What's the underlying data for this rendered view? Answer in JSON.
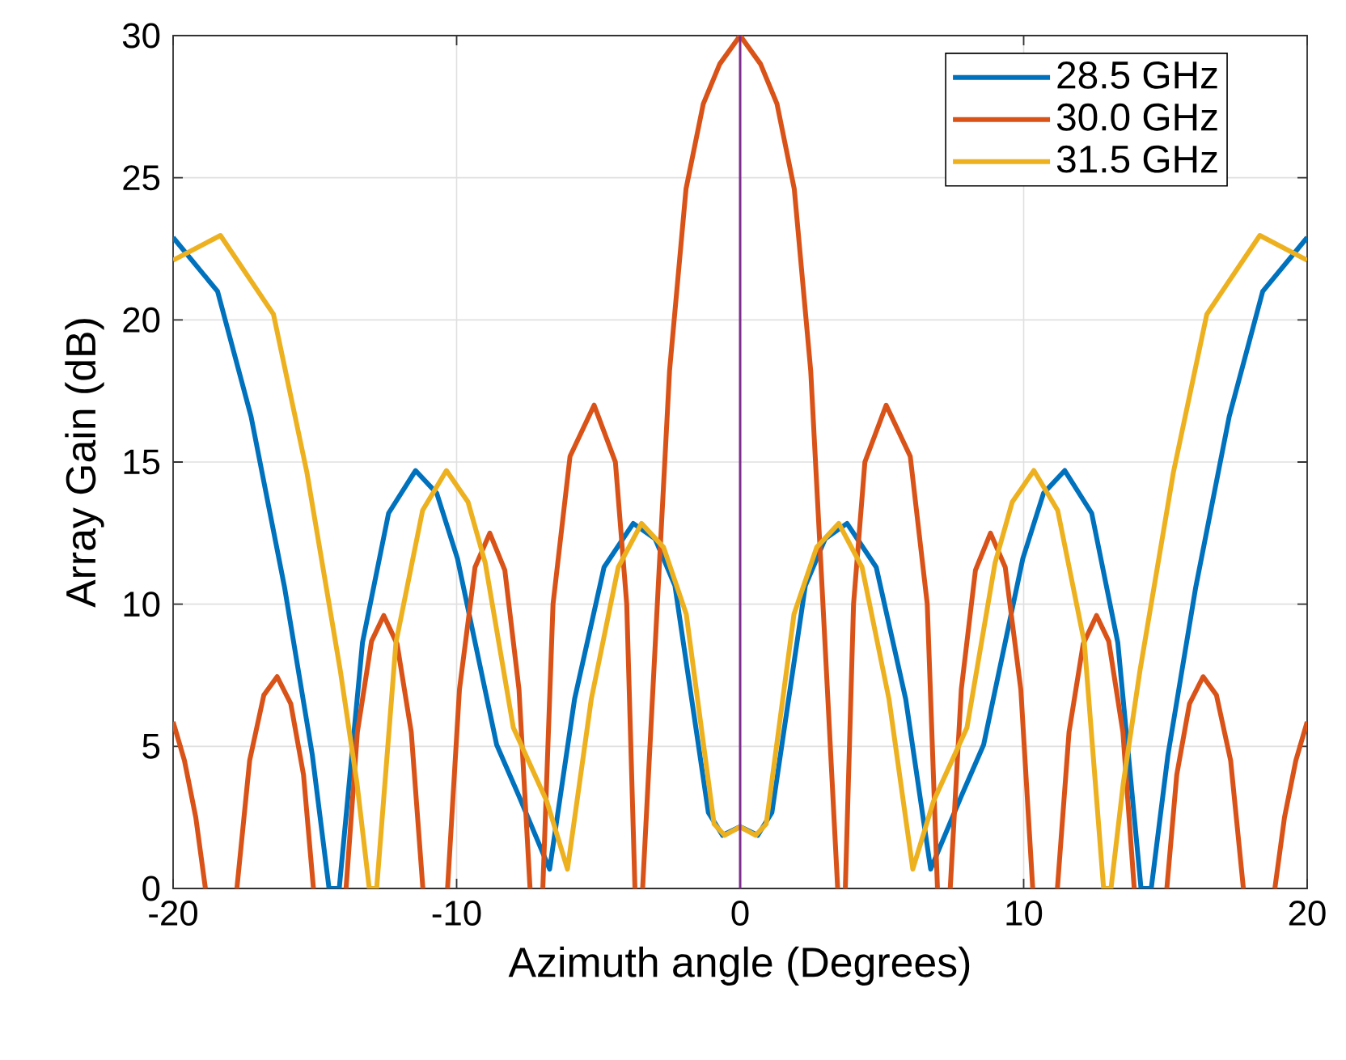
{
  "chart_data": {
    "type": "line",
    "xlabel": "Azimuth angle (Degrees)",
    "ylabel": "Array Gain (dB)",
    "xlim": [
      -20,
      20
    ],
    "ylim": [
      0,
      30
    ],
    "xticks": [
      -20,
      -10,
      0,
      10,
      20
    ],
    "yticks": [
      0,
      5,
      10,
      15,
      20,
      25,
      30
    ],
    "grid": true,
    "legend": "top right",
    "marker": "none",
    "line_style": "solid",
    "ref_lines": [
      {
        "axis": "x",
        "value": 0,
        "color": "#7e2f8e"
      }
    ],
    "series": [
      {
        "name": "28.5 GHz",
        "color": "#0072bd",
        "x": [
          -20,
          -18.43,
          -17.25,
          -16.07,
          -15.09,
          -14.5,
          -14.14,
          -13.32,
          -12.4,
          -11.45,
          -10.7,
          -9.97,
          -8.59,
          -7.81,
          -6.72,
          -5.84,
          -4.8,
          -3.77,
          -3.0,
          -2.3,
          -1.12,
          -0.62,
          0,
          0.62,
          1.12,
          2.3,
          3.0,
          3.77,
          4.8,
          5.84,
          6.72,
          7.81,
          8.59,
          9.97,
          10.7,
          11.45,
          12.4,
          13.32,
          14.14,
          14.5,
          15.09,
          16.07,
          17.25,
          18.43,
          20
        ],
        "values": [
          22.9,
          21.0,
          16.6,
          10.6,
          4.7,
          0,
          0,
          8.65,
          13.2,
          14.7,
          13.9,
          11.6,
          5.06,
          3.27,
          0.68,
          6.66,
          11.3,
          12.84,
          12.3,
          10.65,
          2.67,
          1.87,
          2.17,
          1.87,
          2.67,
          10.65,
          12.3,
          12.84,
          11.3,
          6.66,
          0.68,
          3.27,
          5.06,
          11.6,
          13.9,
          14.7,
          13.2,
          8.65,
          0,
          0,
          4.7,
          10.6,
          16.6,
          21.0,
          22.9
        ]
      },
      {
        "name": "30.0 GHz",
        "color": "#d95319",
        "x": [
          -20,
          -19.6,
          -19.2,
          -18.86,
          -18.3,
          -17.75,
          -17.3,
          -16.8,
          -16.33,
          -15.85,
          -15.4,
          -15.05,
          -14.5,
          -13.9,
          -13.5,
          -13.0,
          -12.57,
          -12.1,
          -11.6,
          -11.19,
          -10.75,
          -10.32,
          -9.9,
          -9.35,
          -8.83,
          -8.3,
          -7.8,
          -7.41,
          -7.18,
          -6.96,
          -6.6,
          -6.0,
          -5.15,
          -4.4,
          -4.0,
          -3.71,
          -3.57,
          -3.44,
          -2.89,
          -2.49,
          -1.91,
          -1.3,
          -0.72,
          0,
          0.72,
          1.3,
          1.91,
          2.49,
          2.89,
          3.44,
          3.57,
          3.71,
          4.0,
          4.4,
          5.15,
          6.0,
          6.6,
          6.96,
          7.18,
          7.41,
          7.8,
          8.3,
          8.83,
          9.35,
          9.9,
          10.32,
          10.75,
          11.19,
          11.6,
          12.1,
          12.57,
          13.0,
          13.5,
          13.9,
          14.5,
          15.05,
          15.4,
          15.85,
          16.33,
          16.8,
          17.3,
          17.75,
          18.3,
          18.86,
          19.2,
          19.6,
          20
        ],
        "values": [
          5.86,
          4.5,
          2.5,
          0,
          null,
          0,
          4.5,
          6.8,
          7.45,
          6.5,
          4,
          0,
          null,
          0,
          5.5,
          8.7,
          9.6,
          8.6,
          5.5,
          0,
          null,
          0,
          7,
          11.3,
          12.5,
          11.2,
          7,
          0,
          null,
          0,
          10,
          15.2,
          17.0,
          15,
          10,
          0,
          null,
          0,
          10.6,
          18.2,
          24.6,
          27.6,
          29.0,
          30,
          29.0,
          27.6,
          24.6,
          18.2,
          10.6,
          0,
          null,
          0,
          10,
          15,
          17.0,
          15.2,
          10,
          0,
          null,
          0,
          7,
          11.2,
          12.5,
          11.3,
          7,
          0,
          null,
          0,
          5.5,
          8.6,
          9.6,
          8.7,
          5.5,
          0,
          null,
          0,
          4,
          6.5,
          7.45,
          6.8,
          4.5,
          0,
          null,
          0,
          2.5,
          4.5,
          5.86
        ]
      },
      {
        "name": "31.5 GHz",
        "color": "#edb120",
        "x": [
          -20,
          -18.33,
          -16.46,
          -15.28,
          -14.1,
          -13.51,
          -13.08,
          -12.82,
          -12.14,
          -11.2,
          -10.36,
          -9.6,
          -8.99,
          -8.0,
          -6.82,
          -6.09,
          -5.25,
          -4.3,
          -3.48,
          -2.7,
          -1.9,
          -0.92,
          -0.55,
          0,
          0.55,
          0.92,
          1.9,
          2.7,
          3.48,
          4.3,
          5.25,
          6.09,
          6.82,
          8.0,
          8.99,
          9.6,
          10.36,
          11.2,
          12.14,
          12.82,
          13.08,
          13.51,
          14.1,
          15.28,
          16.46,
          18.33,
          20
        ],
        "values": [
          22.1,
          22.97,
          20.2,
          14.63,
          7.65,
          3.67,
          0,
          0,
          8.65,
          13.3,
          14.7,
          13.6,
          11.45,
          5.66,
          3.07,
          0.68,
          6.66,
          11.3,
          12.84,
          12.0,
          9.65,
          2.27,
          1.87,
          2.17,
          1.87,
          2.27,
          9.65,
          12.0,
          12.84,
          11.3,
          6.66,
          0.68,
          3.07,
          5.66,
          11.45,
          13.6,
          14.7,
          13.3,
          8.65,
          0,
          0,
          3.67,
          7.65,
          14.63,
          20.2,
          22.97,
          22.1
        ]
      }
    ]
  }
}
